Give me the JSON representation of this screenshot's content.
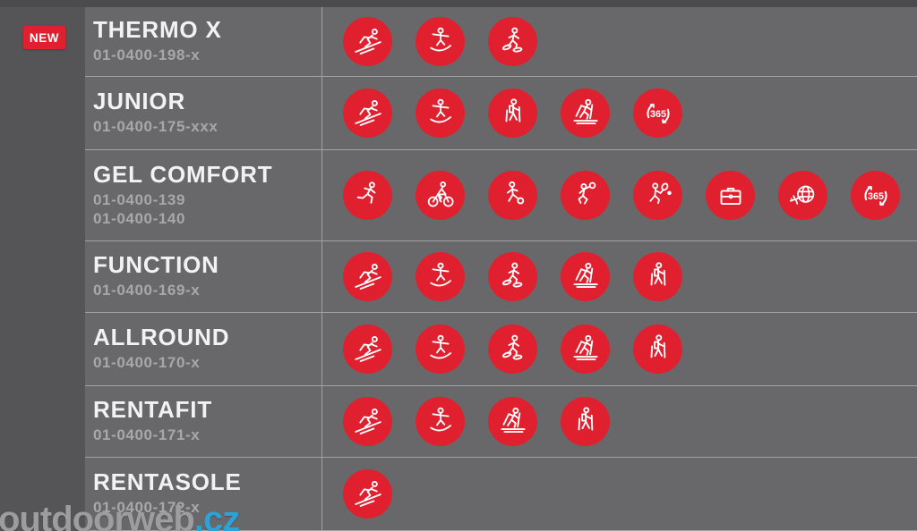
{
  "badge": {
    "label": "NEW"
  },
  "watermark": {
    "name": "outdoorweb",
    "tld": ".cz"
  },
  "colors": {
    "red": "#e0202e",
    "background": "#68686b",
    "side_margin": "#555558",
    "divider": "#a2a2a4",
    "title_text": "#f2f2f2",
    "code_text": "#a8a8aa",
    "watermark_tld_blue": "#2ba3d8"
  },
  "rows": [
    {
      "name": "THERMO X",
      "codes": [
        "01-0400-198-x"
      ],
      "icons": [
        "ski",
        "snowboard",
        "snowshoe"
      ],
      "is_new": true
    },
    {
      "name": "JUNIOR",
      "codes": [
        "01-0400-175-xxx"
      ],
      "icons": [
        "ski",
        "snowboard",
        "hike",
        "xc-ski",
        "365"
      ],
      "is_new": false
    },
    {
      "name": "GEL COMFORT",
      "codes": [
        "01-0400-139",
        "01-0400-140"
      ],
      "icons": [
        "run",
        "bike",
        "soccer",
        "volleyball",
        "tennis",
        "work",
        "travel",
        "365"
      ],
      "is_new": false
    },
    {
      "name": "FUNCTION",
      "codes": [
        "01-0400-169-x"
      ],
      "icons": [
        "ski",
        "snowboard",
        "snowshoe",
        "xc-ski",
        "hike"
      ],
      "is_new": false
    },
    {
      "name": "ALLROUND",
      "codes": [
        "01-0400-170-x"
      ],
      "icons": [
        "ski",
        "snowboard",
        "snowshoe",
        "xc-ski",
        "hike"
      ],
      "is_new": false
    },
    {
      "name": "RENTAFIT",
      "codes": [
        "01-0400-171-x"
      ],
      "icons": [
        "ski",
        "snowboard",
        "xc-ski",
        "hike"
      ],
      "is_new": false
    },
    {
      "name": "RENTASOLE",
      "codes": [
        "01-0400-172-x"
      ],
      "icons": [
        "ski"
      ],
      "is_new": false
    }
  ]
}
